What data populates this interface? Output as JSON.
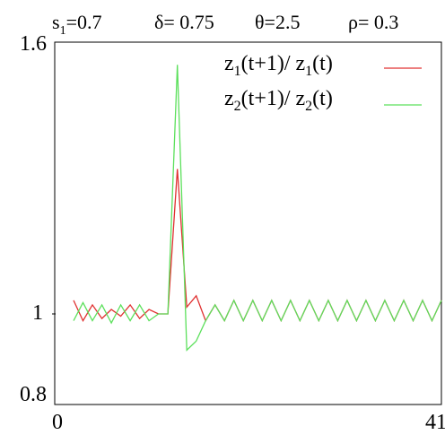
{
  "header": {
    "params": [
      {
        "sym": "s",
        "sub": "1",
        "eq": "=0.7"
      },
      {
        "sym": "δ",
        "sub": "",
        "eq": "= 0.75"
      },
      {
        "sym": "θ",
        "sub": "",
        "eq": "=2.5"
      },
      {
        "sym": "ρ",
        "sub": "",
        "eq": "= 0.3"
      }
    ]
  },
  "chart_data": {
    "type": "line",
    "xlim": [
      0,
      41
    ],
    "ylim": [
      0.8,
      1.6
    ],
    "x_ticks": [
      "0",
      "41"
    ],
    "y_ticks": [
      {
        "label": "1.6",
        "value": 1.6
      },
      {
        "label": "1",
        "value": 1.0
      },
      {
        "label": "0.8",
        "value": 0.8
      }
    ],
    "grid": false,
    "legend_position": "top-right",
    "x": [
      2,
      3,
      4,
      5,
      6,
      7,
      8,
      9,
      10,
      11,
      12,
      13,
      14,
      15,
      16,
      17,
      18,
      19,
      20,
      21,
      22,
      23,
      24,
      25,
      26,
      27,
      28,
      29,
      30,
      31,
      32,
      33,
      34,
      35,
      36,
      37,
      38,
      39,
      40,
      41
    ],
    "series": [
      {
        "name_parts": {
          "a": "z",
          "as": "1",
          "b": "(t+1)/ z",
          "bs": "1",
          "c": "(t)"
        },
        "color": "#e03030",
        "values": [
          1.03,
          0.985,
          1.02,
          0.99,
          1.01,
          0.995,
          1.02,
          0.99,
          1.01,
          1.0,
          1.0,
          1.32,
          1.015,
          1.04,
          0.985,
          1.02,
          0.985,
          1.03,
          0.985,
          1.03,
          0.985,
          1.03,
          0.985,
          1.03,
          0.985,
          1.03,
          0.985,
          1.03,
          0.985,
          1.03,
          0.985,
          1.03,
          0.985,
          1.03,
          0.985,
          1.03,
          0.985,
          1.03,
          0.985,
          1.03
        ]
      },
      {
        "name_parts": {
          "a": "z",
          "as": "2",
          "b": "(t+1)/ z",
          "bs": "2",
          "c": "(t)"
        },
        "color": "#5ce05c",
        "values": [
          0.985,
          1.025,
          0.985,
          1.02,
          0.98,
          1.02,
          0.985,
          1.02,
          0.985,
          1.0,
          1.0,
          1.55,
          0.92,
          0.94,
          0.985,
          1.02,
          0.985,
          1.03,
          0.985,
          1.03,
          0.985,
          1.03,
          0.985,
          1.03,
          0.985,
          1.03,
          0.985,
          1.03,
          0.985,
          1.03,
          0.985,
          1.03,
          0.985,
          1.03,
          0.985,
          1.03,
          0.985,
          1.03,
          0.985,
          1.03
        ]
      }
    ]
  }
}
